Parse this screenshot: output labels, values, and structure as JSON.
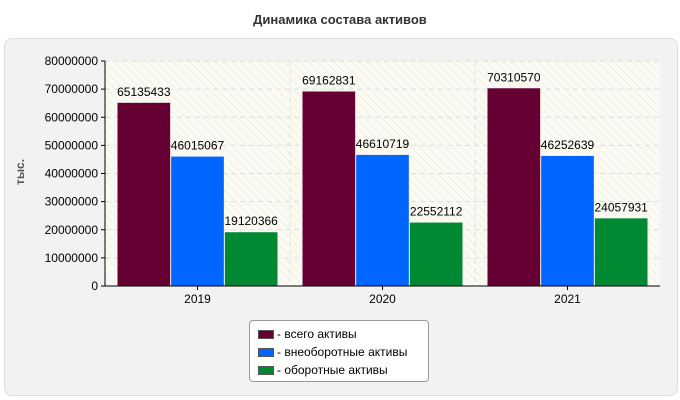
{
  "chart_data": {
    "type": "bar",
    "title": "Динамика состава активов",
    "ylabel": "тыс.",
    "xlabel": "",
    "categories": [
      "2019",
      "2020",
      "2021"
    ],
    "series": [
      {
        "name": "- всего активы",
        "color": "#660033",
        "values": [
          65135433,
          69162831,
          70310570
        ]
      },
      {
        "name": "- внеоборотные активы",
        "color": "#0066ff",
        "values": [
          46015067,
          46610719,
          46252639
        ]
      },
      {
        "name": "- оборотные активы",
        "color": "#008833",
        "values": [
          19120366,
          22552112,
          24057931
        ]
      }
    ],
    "ylim": [
      0,
      80000000
    ],
    "yticks": [
      0,
      10000000,
      20000000,
      30000000,
      40000000,
      50000000,
      60000000,
      70000000,
      80000000
    ],
    "grid": true,
    "legend": "bottom"
  }
}
